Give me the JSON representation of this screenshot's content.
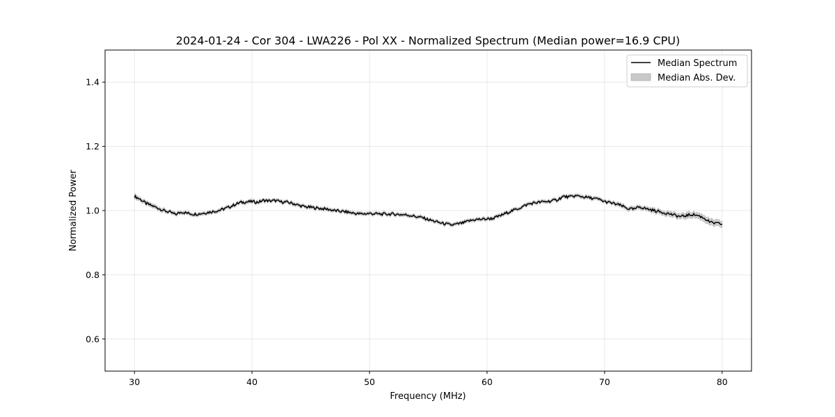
{
  "chart_data": {
    "type": "line",
    "title": "2024-01-24 - Cor 304 - LWA226 - Pol XX - Normalized Spectrum (Median power=16.9 CPU)",
    "xlabel": "Frequency (MHz)",
    "ylabel": "Normalized Power",
    "xlim": [
      27.5,
      82.5
    ],
    "ylim": [
      0.5,
      1.5
    ],
    "xticks": [
      30,
      40,
      50,
      60,
      70,
      80
    ],
    "xtick_labels": [
      "30",
      "40",
      "50",
      "60",
      "70",
      "80"
    ],
    "yticks": [
      0.6,
      0.8,
      1.0,
      1.2,
      1.4
    ],
    "ytick_labels": [
      "0.6",
      "0.8",
      "1.0",
      "1.2",
      "1.4"
    ],
    "grid": true,
    "legend_position": "top-right",
    "legend": [
      {
        "label": "Median Spectrum",
        "kind": "line",
        "color": "#000000"
      },
      {
        "label": "Median Abs. Dev.",
        "kind": "band",
        "color": "#c8c8c8"
      }
    ],
    "series": [
      {
        "name": "Median Spectrum",
        "color": "#000000",
        "band_name": "Median Abs. Dev.",
        "band_color": "#c8c8c8",
        "x": [
          30.0,
          30.5,
          31.0,
          31.5,
          32.0,
          32.5,
          33.0,
          33.5,
          34.0,
          34.5,
          35.0,
          35.5,
          36.0,
          36.5,
          37.0,
          37.5,
          38.0,
          38.5,
          39.0,
          39.5,
          40.0,
          40.5,
          41.0,
          41.5,
          42.0,
          42.5,
          43.0,
          43.5,
          44.0,
          44.5,
          45.0,
          45.5,
          46.0,
          46.5,
          47.0,
          47.5,
          48.0,
          48.5,
          49.0,
          49.5,
          50.0,
          50.5,
          51.0,
          51.5,
          52.0,
          52.5,
          53.0,
          53.5,
          54.0,
          54.5,
          55.0,
          55.5,
          56.0,
          56.5,
          57.0,
          57.5,
          58.0,
          58.5,
          59.0,
          59.5,
          60.0,
          60.5,
          61.0,
          61.5,
          62.0,
          62.5,
          63.0,
          63.5,
          64.0,
          64.5,
          65.0,
          65.5,
          66.0,
          66.5,
          67.0,
          67.5,
          68.0,
          68.5,
          69.0,
          69.5,
          70.0,
          70.5,
          71.0,
          71.5,
          72.0,
          72.5,
          73.0,
          73.5,
          74.0,
          74.5,
          75.0,
          75.5,
          76.0,
          76.5,
          77.0,
          77.5,
          78.0,
          78.5,
          79.0,
          79.5,
          80.0
        ],
        "values": [
          1.045,
          1.035,
          1.022,
          1.015,
          1.008,
          1.0,
          0.995,
          0.988,
          0.996,
          0.992,
          0.989,
          0.99,
          0.993,
          0.996,
          0.999,
          1.004,
          1.01,
          1.018,
          1.025,
          1.027,
          1.028,
          1.026,
          1.032,
          1.03,
          1.031,
          1.027,
          1.026,
          1.022,
          1.016,
          1.012,
          1.01,
          1.008,
          1.006,
          1.004,
          1.0,
          0.998,
          0.996,
          0.993,
          0.99,
          0.99,
          0.991,
          0.99,
          0.989,
          0.989,
          0.989,
          0.988,
          0.987,
          0.985,
          0.981,
          0.978,
          0.972,
          0.967,
          0.962,
          0.958,
          0.955,
          0.958,
          0.962,
          0.968,
          0.972,
          0.973,
          0.974,
          0.976,
          0.982,
          0.99,
          0.998,
          1.004,
          1.012,
          1.02,
          1.024,
          1.026,
          1.028,
          1.03,
          1.034,
          1.044,
          1.042,
          1.046,
          1.044,
          1.041,
          1.038,
          1.035,
          1.028,
          1.024,
          1.02,
          1.014,
          1.006,
          1.004,
          1.012,
          1.006,
          1.002,
          0.998,
          0.994,
          0.99,
          0.985,
          0.981,
          0.985,
          0.988,
          0.984,
          0.976,
          0.963,
          0.96,
          0.958
        ],
        "mad": [
          0.007,
          0.006,
          0.006,
          0.006,
          0.006,
          0.006,
          0.005,
          0.005,
          0.005,
          0.005,
          0.005,
          0.005,
          0.005,
          0.005,
          0.005,
          0.005,
          0.005,
          0.005,
          0.005,
          0.005,
          0.005,
          0.005,
          0.005,
          0.005,
          0.005,
          0.005,
          0.005,
          0.005,
          0.005,
          0.005,
          0.005,
          0.005,
          0.005,
          0.005,
          0.005,
          0.005,
          0.005,
          0.005,
          0.005,
          0.005,
          0.005,
          0.005,
          0.005,
          0.005,
          0.005,
          0.005,
          0.005,
          0.005,
          0.005,
          0.005,
          0.005,
          0.005,
          0.005,
          0.005,
          0.005,
          0.005,
          0.005,
          0.005,
          0.005,
          0.005,
          0.005,
          0.005,
          0.005,
          0.005,
          0.005,
          0.005,
          0.005,
          0.005,
          0.005,
          0.005,
          0.005,
          0.005,
          0.005,
          0.005,
          0.005,
          0.005,
          0.005,
          0.005,
          0.005,
          0.005,
          0.005,
          0.005,
          0.006,
          0.006,
          0.006,
          0.006,
          0.006,
          0.006,
          0.007,
          0.007,
          0.007,
          0.008,
          0.008,
          0.008,
          0.009,
          0.009,
          0.009,
          0.01,
          0.01,
          0.01,
          0.01
        ]
      }
    ]
  }
}
